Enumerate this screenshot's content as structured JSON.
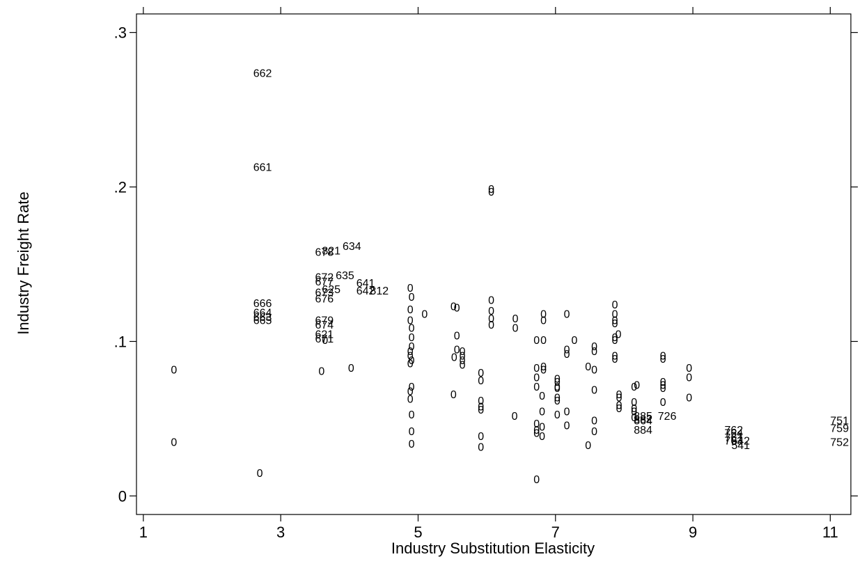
{
  "chart_data": {
    "type": "scatter",
    "title": "",
    "xlabel": "Industry Substitution Elasticity",
    "ylabel": "Industry Freight Rate",
    "xlim": [
      0.9,
      11.3
    ],
    "ylim": [
      -0.012,
      0.312
    ],
    "grid": false,
    "marker": "text label",
    "x_ticks": [
      {
        "value": 1,
        "label": "1"
      },
      {
        "value": 3,
        "label": "3"
      },
      {
        "value": 5,
        "label": "5"
      },
      {
        "value": 7,
        "label": "7"
      },
      {
        "value": 9,
        "label": "9"
      },
      {
        "value": 11,
        "label": "11"
      }
    ],
    "y_ticks": [
      {
        "value": 0,
        "label": "0"
      },
      {
        "value": 0.1,
        "label": ".1"
      },
      {
        "value": 0.2,
        "label": ".2"
      },
      {
        "value": 0.3,
        "label": ".3"
      }
    ],
    "points": [
      {
        "x": 2.6,
        "y": 0.274,
        "label": "662"
      },
      {
        "x": 2.6,
        "y": 0.213,
        "label": "661"
      },
      {
        "x": 2.6,
        "y": 0.125,
        "label": "666"
      },
      {
        "x": 2.6,
        "y": 0.119,
        "label": "664"
      },
      {
        "x": 2.6,
        "y": 0.116,
        "label": "663"
      },
      {
        "x": 2.6,
        "y": 0.114,
        "label": "665"
      },
      {
        "x": 3.5,
        "y": 0.158,
        "label": "678"
      },
      {
        "x": 3.6,
        "y": 0.159,
        "label": "821"
      },
      {
        "x": 3.9,
        "y": 0.162,
        "label": "634"
      },
      {
        "x": 3.5,
        "y": 0.142,
        "label": "672"
      },
      {
        "x": 3.5,
        "y": 0.139,
        "label": "677"
      },
      {
        "x": 3.6,
        "y": 0.134,
        "label": "625"
      },
      {
        "x": 3.5,
        "y": 0.132,
        "label": "673"
      },
      {
        "x": 3.5,
        "y": 0.128,
        "label": "676"
      },
      {
        "x": 3.8,
        "y": 0.143,
        "label": "635"
      },
      {
        "x": 4.1,
        "y": 0.138,
        "label": "641"
      },
      {
        "x": 4.1,
        "y": 0.133,
        "label": "642"
      },
      {
        "x": 4.3,
        "y": 0.133,
        "label": "812"
      },
      {
        "x": 3.5,
        "y": 0.114,
        "label": "679"
      },
      {
        "x": 3.5,
        "y": 0.111,
        "label": "674"
      },
      {
        "x": 3.5,
        "y": 0.105,
        "label": "621"
      },
      {
        "x": 3.5,
        "y": 0.102,
        "label": "671"
      },
      {
        "x": 1.4,
        "y": 0.082,
        "label": "0"
      },
      {
        "x": 1.4,
        "y": 0.035,
        "label": "0"
      },
      {
        "x": 2.65,
        "y": 0.015,
        "label": "0"
      },
      {
        "x": 3.55,
        "y": 0.081,
        "label": "0"
      },
      {
        "x": 3.6,
        "y": 0.101,
        "label": "0"
      },
      {
        "x": 3.98,
        "y": 0.083,
        "label": "0"
      },
      {
        "x": 4.84,
        "y": 0.135,
        "label": "0"
      },
      {
        "x": 4.86,
        "y": 0.129,
        "label": "0"
      },
      {
        "x": 4.84,
        "y": 0.121,
        "label": "0"
      },
      {
        "x": 4.84,
        "y": 0.114,
        "label": "0"
      },
      {
        "x": 4.86,
        "y": 0.109,
        "label": "0"
      },
      {
        "x": 4.86,
        "y": 0.103,
        "label": "0"
      },
      {
        "x": 4.86,
        "y": 0.097,
        "label": "0"
      },
      {
        "x": 4.84,
        "y": 0.094,
        "label": "0"
      },
      {
        "x": 4.84,
        "y": 0.091,
        "label": "0"
      },
      {
        "x": 4.86,
        "y": 0.088,
        "label": "0"
      },
      {
        "x": 4.84,
        "y": 0.086,
        "label": "0"
      },
      {
        "x": 4.86,
        "y": 0.071,
        "label": "0"
      },
      {
        "x": 4.84,
        "y": 0.068,
        "label": "0"
      },
      {
        "x": 4.84,
        "y": 0.063,
        "label": "0"
      },
      {
        "x": 4.86,
        "y": 0.053,
        "label": "0"
      },
      {
        "x": 4.86,
        "y": 0.042,
        "label": "0"
      },
      {
        "x": 4.86,
        "y": 0.034,
        "label": "0"
      },
      {
        "x": 5.05,
        "y": 0.118,
        "label": "0"
      },
      {
        "x": 5.47,
        "y": 0.123,
        "label": "0"
      },
      {
        "x": 5.52,
        "y": 0.122,
        "label": "0"
      },
      {
        "x": 5.52,
        "y": 0.104,
        "label": "0"
      },
      {
        "x": 5.52,
        "y": 0.095,
        "label": "0"
      },
      {
        "x": 5.6,
        "y": 0.094,
        "label": "0"
      },
      {
        "x": 5.6,
        "y": 0.091,
        "label": "0"
      },
      {
        "x": 5.48,
        "y": 0.09,
        "label": "0"
      },
      {
        "x": 5.6,
        "y": 0.088,
        "label": "0"
      },
      {
        "x": 5.6,
        "y": 0.085,
        "label": "0"
      },
      {
        "x": 5.47,
        "y": 0.066,
        "label": "0"
      },
      {
        "x": 5.87,
        "y": 0.08,
        "label": "0"
      },
      {
        "x": 5.87,
        "y": 0.075,
        "label": "0"
      },
      {
        "x": 5.87,
        "y": 0.062,
        "label": "0"
      },
      {
        "x": 5.87,
        "y": 0.058,
        "label": "0"
      },
      {
        "x": 5.87,
        "y": 0.056,
        "label": "0"
      },
      {
        "x": 5.87,
        "y": 0.039,
        "label": "0"
      },
      {
        "x": 5.87,
        "y": 0.032,
        "label": "0"
      },
      {
        "x": 6.02,
        "y": 0.199,
        "label": "0"
      },
      {
        "x": 6.02,
        "y": 0.197,
        "label": "0"
      },
      {
        "x": 6.02,
        "y": 0.127,
        "label": "0"
      },
      {
        "x": 6.02,
        "y": 0.12,
        "label": "0"
      },
      {
        "x": 6.02,
        "y": 0.115,
        "label": "0"
      },
      {
        "x": 6.02,
        "y": 0.111,
        "label": "0"
      },
      {
        "x": 6.37,
        "y": 0.115,
        "label": "0"
      },
      {
        "x": 6.37,
        "y": 0.109,
        "label": "0"
      },
      {
        "x": 6.36,
        "y": 0.052,
        "label": "0"
      },
      {
        "x": 6.78,
        "y": 0.118,
        "label": "0"
      },
      {
        "x": 6.78,
        "y": 0.114,
        "label": "0"
      },
      {
        "x": 6.68,
        "y": 0.101,
        "label": "0"
      },
      {
        "x": 6.78,
        "y": 0.101,
        "label": "0"
      },
      {
        "x": 6.68,
        "y": 0.083,
        "label": "0"
      },
      {
        "x": 6.78,
        "y": 0.084,
        "label": "0"
      },
      {
        "x": 6.78,
        "y": 0.082,
        "label": "0"
      },
      {
        "x": 6.68,
        "y": 0.077,
        "label": "0"
      },
      {
        "x": 6.68,
        "y": 0.071,
        "label": "0"
      },
      {
        "x": 6.76,
        "y": 0.065,
        "label": "0"
      },
      {
        "x": 6.76,
        "y": 0.055,
        "label": "0"
      },
      {
        "x": 6.68,
        "y": 0.047,
        "label": "0"
      },
      {
        "x": 6.76,
        "y": 0.045,
        "label": "0"
      },
      {
        "x": 6.68,
        "y": 0.043,
        "label": "0"
      },
      {
        "x": 6.68,
        "y": 0.041,
        "label": "0"
      },
      {
        "x": 6.76,
        "y": 0.039,
        "label": "0"
      },
      {
        "x": 6.68,
        "y": 0.011,
        "label": "0"
      },
      {
        "x": 6.98,
        "y": 0.076,
        "label": "0"
      },
      {
        "x": 6.98,
        "y": 0.074,
        "label": "0"
      },
      {
        "x": 6.98,
        "y": 0.071,
        "label": "0"
      },
      {
        "x": 6.98,
        "y": 0.07,
        "label": "0"
      },
      {
        "x": 6.98,
        "y": 0.064,
        "label": "0"
      },
      {
        "x": 6.98,
        "y": 0.062,
        "label": "0"
      },
      {
        "x": 6.98,
        "y": 0.053,
        "label": "0"
      },
      {
        "x": 7.12,
        "y": 0.118,
        "label": "0"
      },
      {
        "x": 7.12,
        "y": 0.095,
        "label": "0"
      },
      {
        "x": 7.12,
        "y": 0.092,
        "label": "0"
      },
      {
        "x": 7.12,
        "y": 0.055,
        "label": "0"
      },
      {
        "x": 7.12,
        "y": 0.046,
        "label": "0"
      },
      {
        "x": 7.23,
        "y": 0.101,
        "label": "0"
      },
      {
        "x": 7.43,
        "y": 0.084,
        "label": "0"
      },
      {
        "x": 7.52,
        "y": 0.082,
        "label": "0"
      },
      {
        "x": 7.43,
        "y": 0.033,
        "label": "0"
      },
      {
        "x": 7.52,
        "y": 0.097,
        "label": "0"
      },
      {
        "x": 7.52,
        "y": 0.094,
        "label": "0"
      },
      {
        "x": 7.52,
        "y": 0.069,
        "label": "0"
      },
      {
        "x": 7.52,
        "y": 0.049,
        "label": "0"
      },
      {
        "x": 7.52,
        "y": 0.042,
        "label": "0"
      },
      {
        "x": 7.82,
        "y": 0.124,
        "label": "0"
      },
      {
        "x": 7.82,
        "y": 0.118,
        "label": "0"
      },
      {
        "x": 7.82,
        "y": 0.114,
        "label": "0"
      },
      {
        "x": 7.82,
        "y": 0.112,
        "label": "0"
      },
      {
        "x": 7.87,
        "y": 0.105,
        "label": "0"
      },
      {
        "x": 7.82,
        "y": 0.103,
        "label": "0"
      },
      {
        "x": 7.82,
        "y": 0.101,
        "label": "0"
      },
      {
        "x": 7.82,
        "y": 0.091,
        "label": "0"
      },
      {
        "x": 7.82,
        "y": 0.089,
        "label": "0"
      },
      {
        "x": 7.88,
        "y": 0.066,
        "label": "0"
      },
      {
        "x": 7.88,
        "y": 0.064,
        "label": "0"
      },
      {
        "x": 7.88,
        "y": 0.059,
        "label": "0"
      },
      {
        "x": 7.88,
        "y": 0.057,
        "label": "0"
      },
      {
        "x": 8.1,
        "y": 0.071,
        "label": "0"
      },
      {
        "x": 8.14,
        "y": 0.072,
        "label": "0"
      },
      {
        "x": 8.1,
        "y": 0.061,
        "label": "0"
      },
      {
        "x": 8.1,
        "y": 0.057,
        "label": "0"
      },
      {
        "x": 8.1,
        "y": 0.055,
        "label": "0"
      },
      {
        "x": 8.1,
        "y": 0.051,
        "label": "0"
      },
      {
        "x": 8.14,
        "y": 0.052,
        "label": "885"
      },
      {
        "x": 8.14,
        "y": 0.05,
        "label": "882"
      },
      {
        "x": 8.14,
        "y": 0.049,
        "label": "864"
      },
      {
        "x": 8.14,
        "y": 0.043,
        "label": "884"
      },
      {
        "x": 8.49,
        "y": 0.052,
        "label": "726"
      },
      {
        "x": 8.52,
        "y": 0.091,
        "label": "0"
      },
      {
        "x": 8.52,
        "y": 0.089,
        "label": "0"
      },
      {
        "x": 8.52,
        "y": 0.074,
        "label": "0"
      },
      {
        "x": 8.52,
        "y": 0.072,
        "label": "0"
      },
      {
        "x": 8.52,
        "y": 0.07,
        "label": "0"
      },
      {
        "x": 8.52,
        "y": 0.061,
        "label": "0"
      },
      {
        "x": 8.9,
        "y": 0.083,
        "label": "0"
      },
      {
        "x": 8.9,
        "y": 0.077,
        "label": "0"
      },
      {
        "x": 8.9,
        "y": 0.064,
        "label": "0"
      },
      {
        "x": 9.46,
        "y": 0.043,
        "label": "762"
      },
      {
        "x": 9.46,
        "y": 0.041,
        "label": "764"
      },
      {
        "x": 9.46,
        "y": 0.038,
        "label": "761"
      },
      {
        "x": 9.46,
        "y": 0.036,
        "label": "763"
      },
      {
        "x": 9.56,
        "y": 0.036,
        "label": "542"
      },
      {
        "x": 9.56,
        "y": 0.033,
        "label": "541"
      },
      {
        "x": 11.0,
        "y": 0.049,
        "label": "751"
      },
      {
        "x": 11.0,
        "y": 0.044,
        "label": "759"
      },
      {
        "x": 11.0,
        "y": 0.035,
        "label": "752"
      }
    ]
  }
}
